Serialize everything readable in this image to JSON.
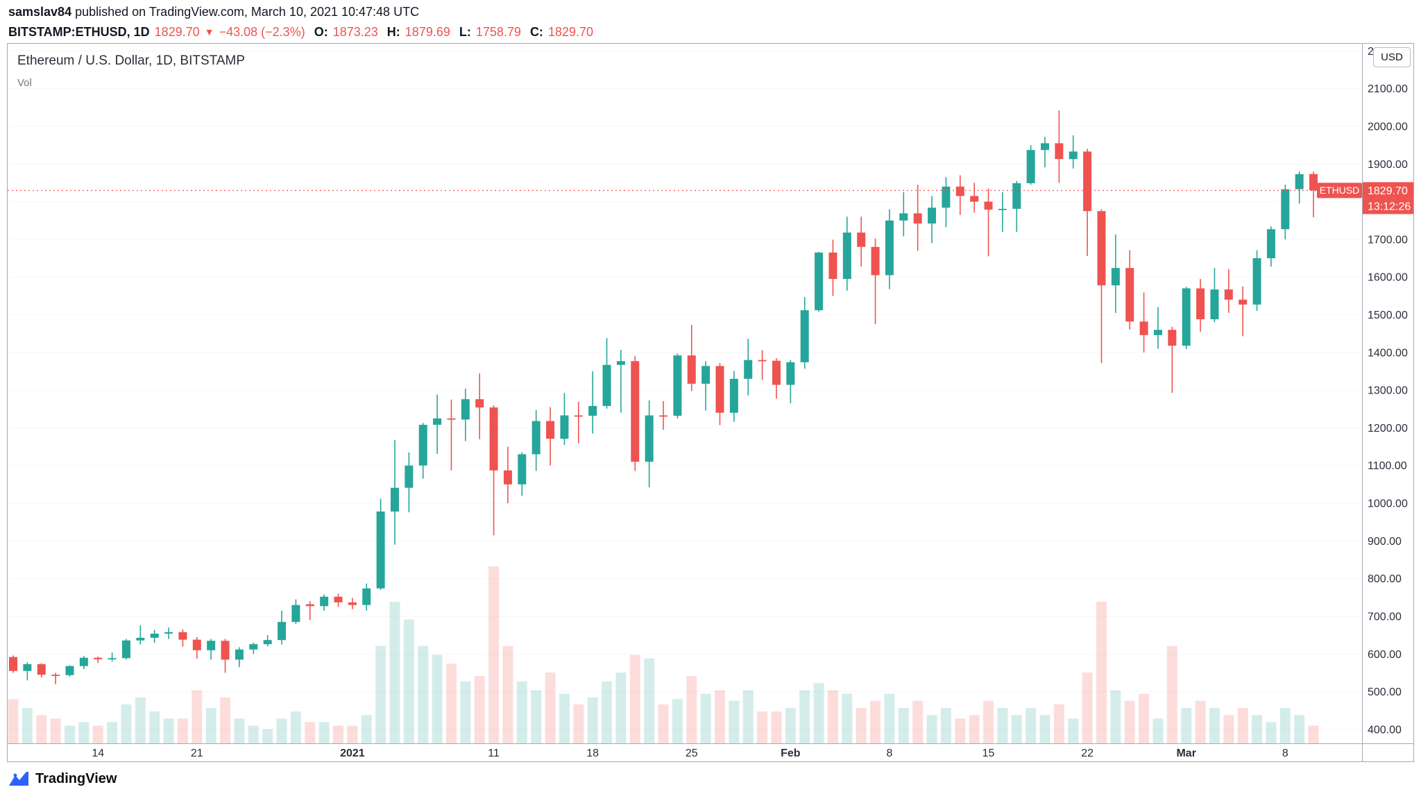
{
  "header": {
    "author": "samslav84",
    "published": " published on TradingView.com, March 10, 2021 10:47:48 UTC",
    "symbol": "BITSTAMP:ETHUSD, 1D",
    "last": "1829.70",
    "arrow": "▼",
    "change": "−43.08 (−2.3%)",
    "o_label": "O:",
    "o": "1873.23",
    "h_label": "H:",
    "h": "1879.69",
    "l_label": "L:",
    "l": "1758.79",
    "c_label": "C:",
    "c": "1829.70"
  },
  "price_scale": {
    "currency": "USD",
    "symbol_tag": "ETHUSD",
    "last_label": "1829.70",
    "countdown": "13:12:26"
  },
  "footer": {
    "brand": "TradingView"
  },
  "colors": {
    "up": "#26a69a",
    "down": "#ef5350",
    "badge": "#ef5350",
    "axis_border": "#a5a8b0"
  },
  "chart_data": {
    "type": "candlestick",
    "symbol": "BITSTAMP:ETHUSD",
    "interval": "1D",
    "title": "Ethereum / U.S. Dollar, 1D, BITSTAMP",
    "indicator": "Vol",
    "ylim": [
      363,
      2219
    ],
    "y_ticks": {
      "start": 400,
      "end": 2200,
      "step": 100
    },
    "last_price": 1829.7,
    "legend_position": "top-left",
    "grid": false,
    "x_ticks": [
      {
        "index": 6,
        "label": "14"
      },
      {
        "index": 13,
        "label": "21"
      },
      {
        "index": 24,
        "label": "2021",
        "bold": true
      },
      {
        "index": 34,
        "label": "11"
      },
      {
        "index": 41,
        "label": "18"
      },
      {
        "index": 48,
        "label": "25"
      },
      {
        "index": 55,
        "label": "Feb",
        "bold": true
      },
      {
        "index": 62,
        "label": "8"
      },
      {
        "index": 69,
        "label": "15"
      },
      {
        "index": 76,
        "label": "22"
      },
      {
        "index": 83,
        "label": "Mar",
        "bold": true
      },
      {
        "index": 90,
        "label": "8"
      }
    ],
    "columns": [
      "date",
      "open",
      "high",
      "low",
      "close",
      "volume_rel"
    ],
    "candles": [
      [
        "2020-12-08",
        592,
        596,
        550,
        555,
        25
      ],
      [
        "2020-12-09",
        555,
        578,
        530,
        573,
        20
      ],
      [
        "2020-12-10",
        573,
        576,
        538,
        545,
        16
      ],
      [
        "2020-12-11",
        545,
        550,
        520,
        544,
        14
      ],
      [
        "2020-12-12",
        544,
        570,
        540,
        568,
        10
      ],
      [
        "2020-12-13",
        568,
        595,
        560,
        590,
        12
      ],
      [
        "2020-12-14",
        590,
        593,
        576,
        586,
        10
      ],
      [
        "2020-12-15",
        586,
        604,
        580,
        589,
        12
      ],
      [
        "2020-12-16",
        589,
        640,
        585,
        636,
        22
      ],
      [
        "2020-12-17",
        636,
        676,
        625,
        643,
        26
      ],
      [
        "2020-12-18",
        643,
        664,
        630,
        654,
        18
      ],
      [
        "2020-12-19",
        654,
        670,
        640,
        658,
        14
      ],
      [
        "2020-12-20",
        658,
        665,
        620,
        638,
        14
      ],
      [
        "2020-12-21",
        638,
        645,
        588,
        610,
        30
      ],
      [
        "2020-12-22",
        610,
        640,
        585,
        635,
        20
      ],
      [
        "2020-12-23",
        635,
        640,
        550,
        585,
        26
      ],
      [
        "2020-12-24",
        585,
        618,
        565,
        612,
        14
      ],
      [
        "2020-12-25",
        612,
        630,
        600,
        626,
        10
      ],
      [
        "2020-12-26",
        626,
        650,
        620,
        637,
        8
      ],
      [
        "2020-12-27",
        637,
        715,
        625,
        685,
        14
      ],
      [
        "2020-12-28",
        685,
        745,
        680,
        730,
        18
      ],
      [
        "2020-12-29",
        732,
        740,
        690,
        727,
        12
      ],
      [
        "2020-12-30",
        727,
        758,
        715,
        752,
        12
      ],
      [
        "2020-12-31",
        752,
        760,
        725,
        737,
        10
      ],
      [
        "2021-01-01",
        737,
        749,
        719,
        730,
        10
      ],
      [
        "2021-01-02",
        730,
        787,
        715,
        774,
        16
      ],
      [
        "2021-01-03",
        774,
        1012,
        770,
        978,
        55
      ],
      [
        "2021-01-04",
        978,
        1168,
        890,
        1041,
        80
      ],
      [
        "2021-01-05",
        1041,
        1135,
        976,
        1100,
        70
      ],
      [
        "2021-01-06",
        1100,
        1213,
        1065,
        1208,
        55
      ],
      [
        "2021-01-07",
        1208,
        1288,
        1131,
        1225,
        50
      ],
      [
        "2021-01-08",
        1225,
        1275,
        1087,
        1222,
        45
      ],
      [
        "2021-01-09",
        1222,
        1304,
        1165,
        1276,
        35
      ],
      [
        "2021-01-10",
        1276,
        1344,
        1170,
        1254,
        38
      ],
      [
        "2021-01-11",
        1254,
        1260,
        915,
        1087,
        100
      ],
      [
        "2021-01-12",
        1087,
        1150,
        1000,
        1050,
        55
      ],
      [
        "2021-01-13",
        1050,
        1135,
        1020,
        1130,
        35
      ],
      [
        "2021-01-14",
        1130,
        1247,
        1086,
        1218,
        30
      ],
      [
        "2021-01-15",
        1218,
        1255,
        1100,
        1171,
        40
      ],
      [
        "2021-01-16",
        1171,
        1292,
        1155,
        1233,
        28
      ],
      [
        "2021-01-17",
        1233,
        1269,
        1159,
        1232,
        22
      ],
      [
        "2021-01-18",
        1232,
        1350,
        1185,
        1258,
        26
      ],
      [
        "2021-01-19",
        1258,
        1438,
        1251,
        1367,
        35
      ],
      [
        "2021-01-20",
        1367,
        1407,
        1240,
        1377,
        40
      ],
      [
        "2021-01-21",
        1377,
        1390,
        1086,
        1110,
        50
      ],
      [
        "2021-01-22",
        1110,
        1273,
        1042,
        1233,
        48
      ],
      [
        "2021-01-23",
        1233,
        1271,
        1195,
        1232,
        22
      ],
      [
        "2021-01-24",
        1232,
        1397,
        1225,
        1392,
        25
      ],
      [
        "2021-01-25",
        1392,
        1473,
        1298,
        1317,
        38
      ],
      [
        "2021-01-26",
        1317,
        1377,
        1246,
        1364,
        28
      ],
      [
        "2021-01-27",
        1364,
        1372,
        1207,
        1240,
        30
      ],
      [
        "2021-01-28",
        1240,
        1351,
        1216,
        1330,
        24
      ],
      [
        "2021-01-29",
        1330,
        1436,
        1286,
        1380,
        30
      ],
      [
        "2021-01-30",
        1380,
        1406,
        1327,
        1378,
        18
      ],
      [
        "2021-01-31",
        1378,
        1385,
        1277,
        1314,
        18
      ],
      [
        "2021-02-01",
        1314,
        1380,
        1265,
        1374,
        20
      ],
      [
        "2021-02-02",
        1374,
        1547,
        1357,
        1512,
        30
      ],
      [
        "2021-02-03",
        1512,
        1667,
        1508,
        1665,
        34
      ],
      [
        "2021-02-04",
        1665,
        1699,
        1550,
        1595,
        30
      ],
      [
        "2021-02-05",
        1595,
        1760,
        1564,
        1718,
        28
      ],
      [
        "2021-02-06",
        1718,
        1760,
        1628,
        1680,
        20
      ],
      [
        "2021-02-07",
        1680,
        1702,
        1475,
        1605,
        24
      ],
      [
        "2021-02-08",
        1605,
        1780,
        1568,
        1750,
        28
      ],
      [
        "2021-02-09",
        1750,
        1825,
        1708,
        1769,
        20
      ],
      [
        "2021-02-10",
        1769,
        1845,
        1670,
        1742,
        24
      ],
      [
        "2021-02-11",
        1742,
        1815,
        1690,
        1784,
        16
      ],
      [
        "2021-02-12",
        1784,
        1865,
        1732,
        1840,
        20
      ],
      [
        "2021-02-13",
        1840,
        1870,
        1765,
        1815,
        14
      ],
      [
        "2021-02-14",
        1815,
        1850,
        1771,
        1800,
        16
      ],
      [
        "2021-02-15",
        1800,
        1835,
        1655,
        1779,
        24
      ],
      [
        "2021-02-16",
        1779,
        1825,
        1720,
        1781,
        20
      ],
      [
        "2021-02-17",
        1781,
        1855,
        1720,
        1849,
        16
      ],
      [
        "2021-02-18",
        1849,
        1950,
        1845,
        1937,
        20
      ],
      [
        "2021-02-19",
        1937,
        1972,
        1891,
        1955,
        16
      ],
      [
        "2021-02-20",
        1955,
        2042,
        1850,
        1913,
        22
      ],
      [
        "2021-02-21",
        1913,
        1976,
        1888,
        1933,
        14
      ],
      [
        "2021-02-22",
        1933,
        1940,
        1656,
        1775,
        40
      ],
      [
        "2021-02-23",
        1775,
        1780,
        1372,
        1578,
        80
      ],
      [
        "2021-02-24",
        1578,
        1713,
        1505,
        1624,
        30
      ],
      [
        "2021-02-25",
        1624,
        1671,
        1461,
        1482,
        24
      ],
      [
        "2021-02-26",
        1482,
        1559,
        1400,
        1446,
        28
      ],
      [
        "2021-02-27",
        1446,
        1520,
        1410,
        1460,
        14
      ],
      [
        "2021-02-28",
        1460,
        1468,
        1293,
        1418,
        55
      ],
      [
        "2021-03-01",
        1418,
        1574,
        1409,
        1570,
        20
      ],
      [
        "2021-03-02",
        1570,
        1595,
        1455,
        1488,
        24
      ],
      [
        "2021-03-03",
        1488,
        1624,
        1480,
        1567,
        20
      ],
      [
        "2021-03-04",
        1567,
        1621,
        1505,
        1540,
        16
      ],
      [
        "2021-03-05",
        1540,
        1575,
        1443,
        1527,
        20
      ],
      [
        "2021-03-06",
        1527,
        1671,
        1510,
        1650,
        16
      ],
      [
        "2021-03-07",
        1650,
        1734,
        1628,
        1727,
        12
      ],
      [
        "2021-03-08",
        1727,
        1845,
        1700,
        1833,
        20
      ],
      [
        "2021-03-09",
        1833,
        1880,
        1795,
        1873,
        16
      ],
      [
        "2021-03-10",
        1873.23,
        1879.69,
        1758.79,
        1829.7,
        10
      ]
    ]
  }
}
